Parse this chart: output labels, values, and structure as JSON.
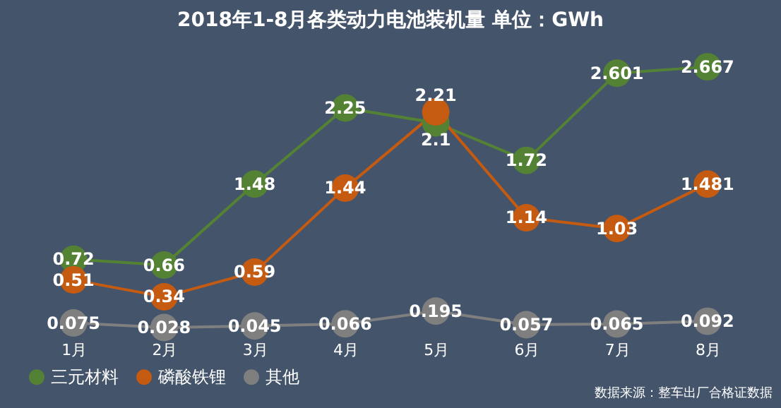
{
  "chart_data": {
    "type": "line",
    "title": "2018年1-8月各类动力电池装机量 单位：GWh",
    "categories": [
      "1月",
      "2月",
      "3月",
      "4月",
      "5月",
      "6月",
      "7月",
      "8月"
    ],
    "series": [
      {
        "name": "三元材料",
        "color": "#548235",
        "values": [
          0.72,
          0.66,
          1.48,
          2.25,
          2.1,
          1.72,
          2.601,
          2.667
        ]
      },
      {
        "name": "磷酸铁锂",
        "color": "#c55a11",
        "values": [
          0.51,
          0.34,
          0.59,
          1.44,
          2.21,
          1.14,
          1.03,
          1.481
        ]
      },
      {
        "name": "其他",
        "color": "#7f7f7f",
        "values": [
          0.075,
          0.028,
          0.045,
          0.066,
          0.195,
          0.057,
          0.065,
          0.092
        ]
      }
    ],
    "data_labels": true,
    "marker": "circle",
    "line_style": "solid",
    "grid": false,
    "legend": "bottom",
    "annotations": [
      "数据来源：整车出厂合格证数据"
    ]
  }
}
